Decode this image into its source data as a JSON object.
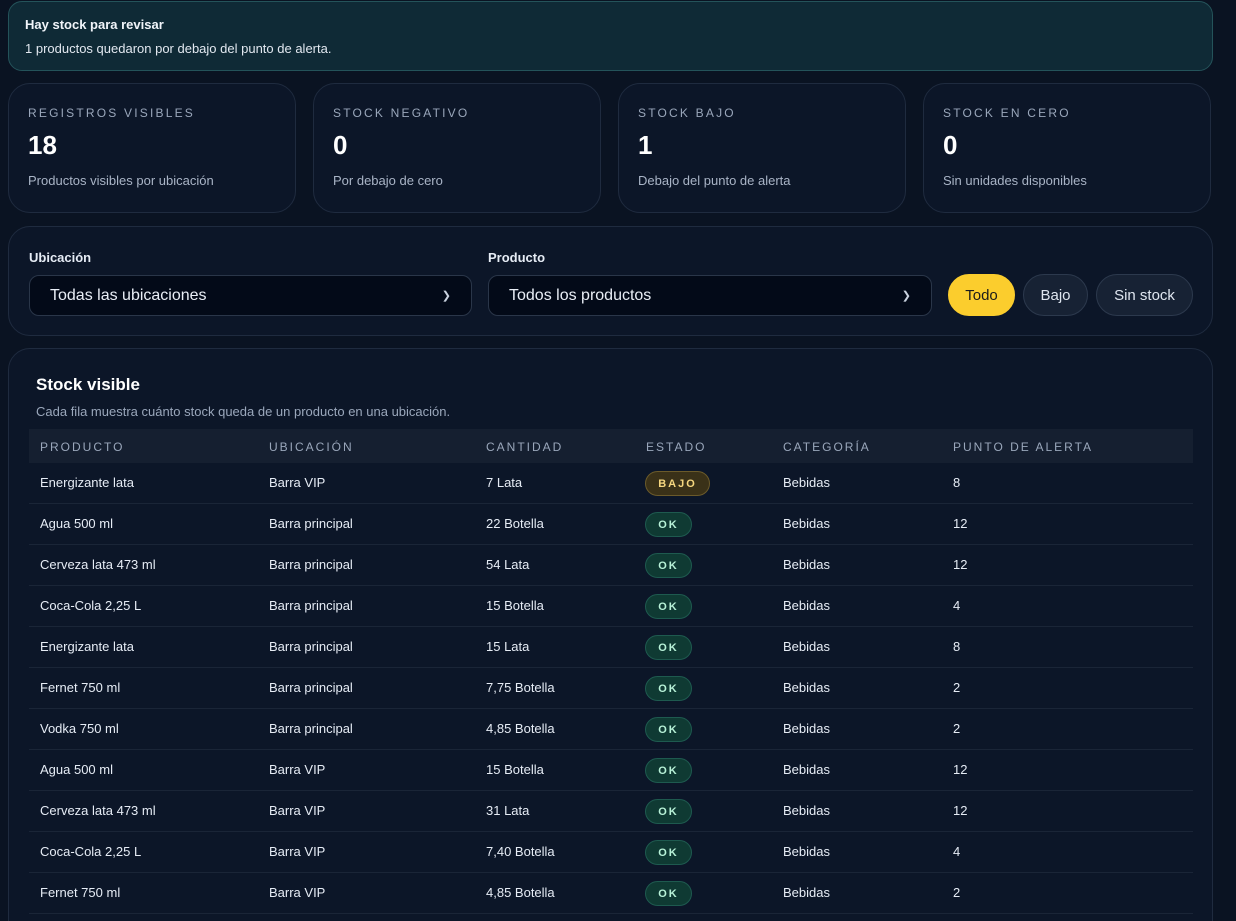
{
  "alert": {
    "title": "Hay stock para revisar",
    "message": "1 productos quedaron por debajo del punto de alerta."
  },
  "cards": [
    {
      "label": "REGISTROS VISIBLES",
      "value": "18",
      "desc": "Productos visibles por ubicación"
    },
    {
      "label": "STOCK NEGATIVO",
      "value": "0",
      "desc": "Por debajo de cero"
    },
    {
      "label": "STOCK BAJO",
      "value": "1",
      "desc": "Debajo del punto de alerta"
    },
    {
      "label": "STOCK EN CERO",
      "value": "0",
      "desc": "Sin unidades disponibles"
    }
  ],
  "filters": {
    "location_label": "Ubicación",
    "location_value": "Todas las ubicaciones",
    "product_label": "Producto",
    "product_value": "Todos los productos",
    "btn_all": "Todo",
    "btn_low": "Bajo",
    "btn_none": "Sin stock"
  },
  "panel": {
    "title": "Stock visible",
    "subtitle": "Cada fila muestra cuánto stock queda de un producto en una ubicación."
  },
  "table": {
    "headers": [
      "PRODUCTO",
      "UBICACIÓN",
      "CANTIDAD",
      "ESTADO",
      "CATEGORÍA",
      "PUNTO DE ALERTA"
    ],
    "rows": [
      [
        "Energizante lata",
        "Barra VIP",
        "7 Lata",
        "BAJO",
        "Bebidas",
        "8"
      ],
      [
        "Agua 500 ml",
        "Barra principal",
        "22 Botella",
        "OK",
        "Bebidas",
        "12"
      ],
      [
        "Cerveza lata 473 ml",
        "Barra principal",
        "54 Lata",
        "OK",
        "Bebidas",
        "12"
      ],
      [
        "Coca-Cola 2,25 L",
        "Barra principal",
        "15 Botella",
        "OK",
        "Bebidas",
        "4"
      ],
      [
        "Energizante lata",
        "Barra principal",
        "15 Lata",
        "OK",
        "Bebidas",
        "8"
      ],
      [
        "Fernet 750 ml",
        "Barra principal",
        "7,75 Botella",
        "OK",
        "Bebidas",
        "2"
      ],
      [
        "Vodka 750 ml",
        "Barra principal",
        "4,85 Botella",
        "OK",
        "Bebidas",
        "2"
      ],
      [
        "Agua 500 ml",
        "Barra VIP",
        "15 Botella",
        "OK",
        "Bebidas",
        "12"
      ],
      [
        "Cerveza lata 473 ml",
        "Barra VIP",
        "31 Lata",
        "OK",
        "Bebidas",
        "12"
      ],
      [
        "Coca-Cola 2,25 L",
        "Barra VIP",
        "7,40 Botella",
        "OK",
        "Bebidas",
        "4"
      ],
      [
        "Fernet 750 ml",
        "Barra VIP",
        "4,85 Botella",
        "OK",
        "Bebidas",
        "2"
      ]
    ]
  }
}
